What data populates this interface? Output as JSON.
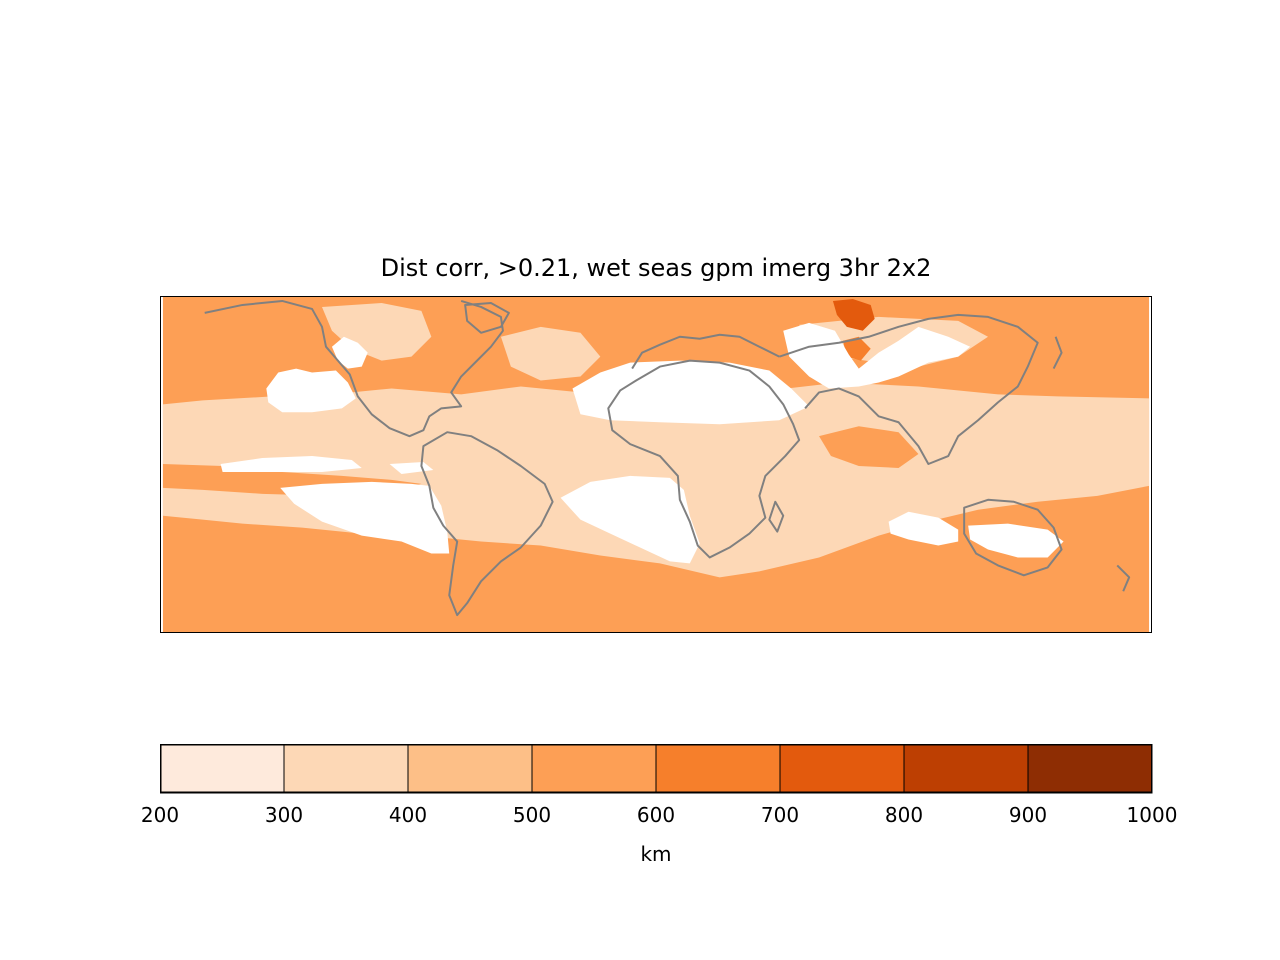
{
  "title": "Dist corr, >0.21, wet seas gpm imerg 3hr 2x2",
  "colorbar": {
    "label": "km",
    "ticks": [
      "200",
      "300",
      "400",
      "500",
      "600",
      "700",
      "800",
      "900",
      "1000"
    ],
    "colors": [
      "#feeadc",
      "#fdd8b6",
      "#fdbf87",
      "#fd9f55",
      "#f67f2b",
      "#e35a0d",
      "#bd3f02",
      "#8e2d03"
    ]
  },
  "map": {
    "ocean_base_color": "#fd9f55",
    "tropical_band_color": "#fdd8b6",
    "missing_color": "#ffffff",
    "coastline_color": "#808080",
    "max_color": "#e35a0d"
  }
}
